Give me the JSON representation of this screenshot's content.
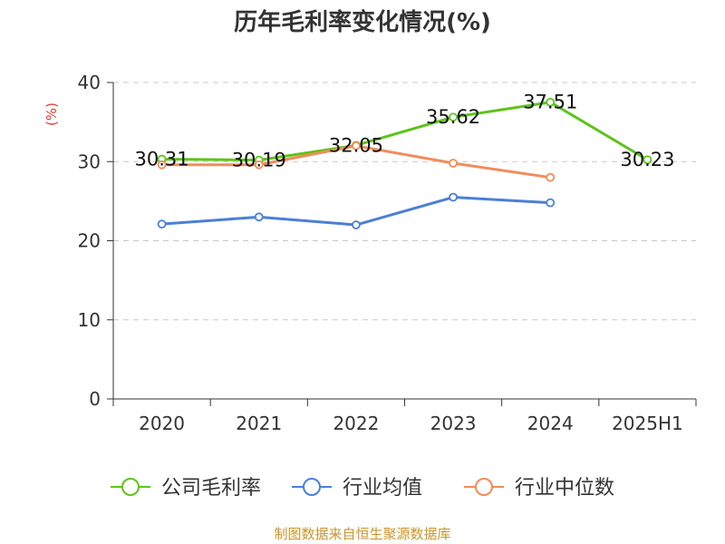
{
  "chart_data": {
    "type": "line",
    "title": "历年毛利率变化情况(%)",
    "ylabel": "(%)",
    "xlabel": "",
    "ylim": [
      0,
      40
    ],
    "yticks": [
      0,
      10,
      20,
      30,
      40
    ],
    "grid": true,
    "legend_position": "bottom",
    "categories": [
      "2020",
      "2021",
      "2022",
      "2023",
      "2024",
      "2025H1"
    ],
    "series": [
      {
        "name": "公司毛利率",
        "color": "#5ec31a",
        "values": [
          30.31,
          30.19,
          32.05,
          35.62,
          37.51,
          30.23
        ],
        "labels": [
          "30.31",
          "30.19",
          "32.05",
          "35.62",
          "37.51",
          "30.23"
        ]
      },
      {
        "name": "行业均值",
        "color": "#4a7fd8",
        "values": [
          22.1,
          23.0,
          22.0,
          25.5,
          24.8,
          null
        ]
      },
      {
        "name": "行业中位数",
        "color": "#f28c5a",
        "values": [
          29.6,
          29.6,
          32.0,
          29.8,
          28.0,
          null
        ]
      }
    ]
  },
  "source": "制图数据来自恒生聚源数据库"
}
